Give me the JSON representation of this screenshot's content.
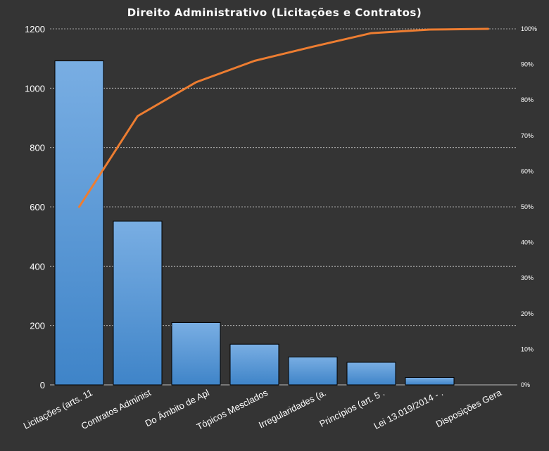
{
  "chart_data": {
    "type": "bar",
    "title": "Direito  Administrativo  (Licitações e Contratos)",
    "categories": [
      "Licitações (arts. 11",
      "Contratos Administ",
      "Do Âmbito de Apl",
      "Tópicos Mesclados",
      "Irregularidades (a.",
      "Princípios (art. 5 .",
      "Lei 13.019/2014 - .",
      "Disposições Gera"
    ],
    "series": [
      {
        "type": "bar",
        "values": [
          1092,
          552,
          210,
          137,
          94,
          76,
          25,
          0
        ]
      },
      {
        "type": "line",
        "axis": "right",
        "values": [
          50,
          75.5,
          85,
          91,
          95,
          98.8,
          99.8,
          100
        ]
      }
    ],
    "ylim": [
      0,
      1200
    ],
    "yticks": [
      "0",
      "200",
      "400",
      "600",
      "800",
      "1000",
      "1200"
    ],
    "y2lim": [
      0,
      100
    ],
    "y2ticks": [
      "0%",
      "10%",
      "20%",
      "30%",
      "40%",
      "50%",
      "60%",
      "70%",
      "80%",
      "90%",
      "100%"
    ],
    "grid": true,
    "legend": "none",
    "colors": {
      "bar": "#5b9bd5",
      "line": "#ed7d31",
      "background": "#343434",
      "text": "#ffffff"
    }
  }
}
